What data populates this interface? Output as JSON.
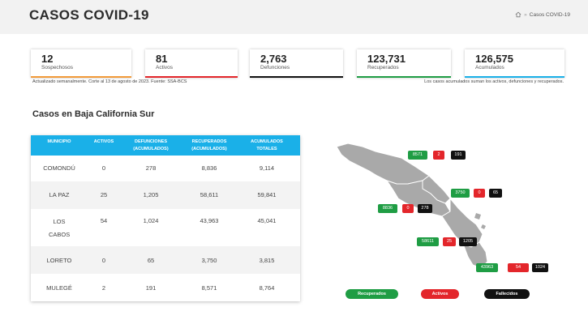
{
  "header": {
    "title": "CASOS COVID-19",
    "breadcrumb_current": "Casos COVID-19",
    "breadcrumb_sep": "»"
  },
  "stats": [
    {
      "value": "12",
      "label": "Sospechosos",
      "color": "#f29a39"
    },
    {
      "value": "81",
      "label": "Activos",
      "color": "#e3262b"
    },
    {
      "value": "2,763",
      "label": "Defunciones",
      "color": "#111111"
    },
    {
      "value": "123,731",
      "label": "Recuperados",
      "color": "#1f9d44"
    },
    {
      "value": "126,575",
      "label": "Acumulados",
      "color": "#1ab0e8"
    }
  ],
  "notes": {
    "left": "Actualizado semanalmente. Corte al 13 de agosto de 2023. Fuente: SSA-BCS",
    "right": "Los casos acumulados suman los activos, defunciones y recuperados."
  },
  "section_title": "Casos en Baja California Sur",
  "table": {
    "headers": [
      "MUNICIPIO",
      "ACTIVOS",
      "DEFUNCIONES (ACUMULADOS)",
      "RECUPERADOS (ACUMULADOS)",
      "ACUMULADOS TOTALES"
    ],
    "rows": [
      {
        "municipio": "COMONDÚ",
        "activos": "0",
        "defunciones": "278",
        "recuperados": "8,836",
        "acumulados": "9,114"
      },
      {
        "municipio": "LA PAZ",
        "activos": "25",
        "defunciones": "1,205",
        "recuperados": "58,611",
        "acumulados": "59,841"
      },
      {
        "municipio": "LOS CABOS",
        "activos": "54",
        "defunciones": "1,024",
        "recuperados": "43,963",
        "acumulados": "45,041"
      },
      {
        "municipio": "LORETO",
        "activos": "0",
        "defunciones": "65",
        "recuperados": "3,750",
        "acumulados": "3,815"
      },
      {
        "municipio": "MULEGÉ",
        "activos": "2",
        "defunciones": "191",
        "recuperados": "8,571",
        "acumulados": "8,764"
      }
    ]
  },
  "map": {
    "badges": [
      {
        "recuperados": "8571",
        "activos": "2",
        "fallecidos": "191"
      },
      {
        "recuperados": "3750",
        "activos": "0",
        "fallecidos": "65"
      },
      {
        "recuperados": "8836",
        "activos": "0",
        "fallecidos": "278"
      },
      {
        "recuperados": "58611",
        "activos": "25",
        "fallecidos": "1205"
      },
      {
        "recuperados": "43963",
        "activos": "54",
        "fallecidos": "1024"
      }
    ],
    "legend": [
      {
        "label": "Recuperados",
        "color": "#1f9d44"
      },
      {
        "label": "Activos",
        "color": "#e3262b"
      },
      {
        "label": "Fallecidos",
        "color": "#111111"
      }
    ]
  }
}
